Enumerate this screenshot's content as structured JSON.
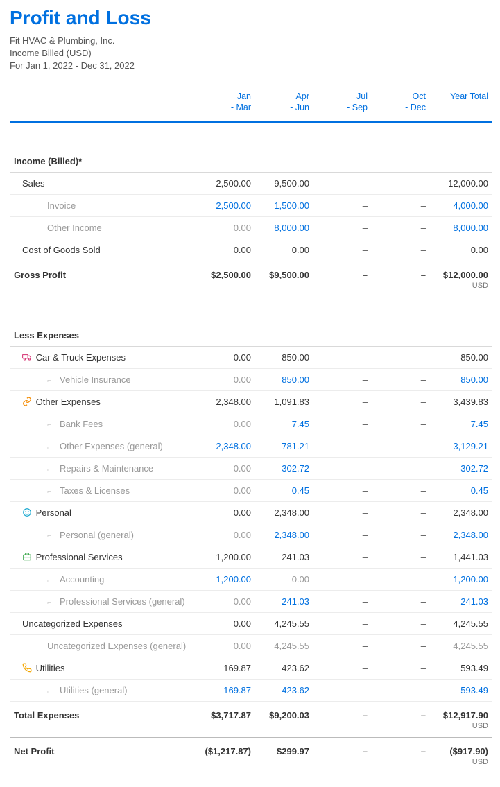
{
  "colors": {
    "brand": "#0070e0",
    "text": "#333333",
    "muted": "#999999",
    "border_light": "#ececec",
    "border_med": "#d9d9d9",
    "border_dark": "#bbbbbb",
    "header_rule": "#0070e0",
    "icon_car": "#d9447f",
    "icon_other": "#f58b00",
    "icon_personal": "#1aa8d0",
    "icon_prof": "#3ca84c",
    "icon_util": "#f5a700"
  },
  "title": "Profit and Loss",
  "subtitle": {
    "company": "Fit HVAC & Plumbing, Inc.",
    "basis": "Income Billed (USD)",
    "period": "For Jan 1, 2022 - Dec 31, 2022"
  },
  "columns": [
    {
      "l1": "",
      "l2": ""
    },
    {
      "l1": "Jan",
      "l2": "- Mar"
    },
    {
      "l1": "Apr",
      "l2": "- Jun"
    },
    {
      "l1": "Jul",
      "l2": "- Sep"
    },
    {
      "l1": "Oct",
      "l2": "- Dec"
    },
    {
      "l1": "Year Total",
      "l2": ""
    }
  ],
  "income": {
    "header": "Income (Billed)*",
    "rows": [
      {
        "type": "cat",
        "label": "Sales",
        "v": [
          "2,500.00",
          "9,500.00",
          "–",
          "–",
          "12,000.00"
        ]
      },
      {
        "type": "sub",
        "label": "Invoice",
        "v": [
          "2,500.00",
          "1,500.00",
          "–",
          "–",
          "4,000.00"
        ],
        "link": true
      },
      {
        "type": "sub",
        "label": "Other Income",
        "v": [
          "0.00",
          "8,000.00",
          "–",
          "–",
          "8,000.00"
        ],
        "link": true,
        "mute0": true
      },
      {
        "type": "cat",
        "label": "Cost of Goods Sold",
        "v": [
          "0.00",
          "0.00",
          "–",
          "–",
          "0.00"
        ]
      }
    ],
    "total": {
      "label": "Gross Profit",
      "v": [
        "$2,500.00",
        "$9,500.00",
        "–",
        "–",
        "$12,000.00"
      ],
      "curr": "USD"
    }
  },
  "expenses": {
    "header": "Less Expenses",
    "rows": [
      {
        "type": "cat",
        "icon": "car",
        "label": "Car & Truck Expenses",
        "v": [
          "0.00",
          "850.00",
          "–",
          "–",
          "850.00"
        ]
      },
      {
        "type": "sub",
        "tree": true,
        "label": "Vehicle Insurance",
        "v": [
          "0.00",
          "850.00",
          "–",
          "–",
          "850.00"
        ],
        "link": true,
        "mute0": true
      },
      {
        "type": "cat",
        "icon": "other",
        "label": "Other Expenses",
        "v": [
          "2,348.00",
          "1,091.83",
          "–",
          "–",
          "3,439.83"
        ]
      },
      {
        "type": "sub",
        "tree": true,
        "label": "Bank Fees",
        "v": [
          "0.00",
          "7.45",
          "–",
          "–",
          "7.45"
        ],
        "link": true,
        "mute0": true
      },
      {
        "type": "sub",
        "tree": true,
        "label": "Other Expenses (general)",
        "v": [
          "2,348.00",
          "781.21",
          "–",
          "–",
          "3,129.21"
        ],
        "link": true
      },
      {
        "type": "sub",
        "tree": true,
        "label": "Repairs & Maintenance",
        "v": [
          "0.00",
          "302.72",
          "–",
          "–",
          "302.72"
        ],
        "link": true,
        "mute0": true
      },
      {
        "type": "sub",
        "tree": true,
        "label": "Taxes & Licenses",
        "v": [
          "0.00",
          "0.45",
          "–",
          "–",
          "0.45"
        ],
        "link": true,
        "mute0": true
      },
      {
        "type": "cat",
        "icon": "personal",
        "label": "Personal",
        "v": [
          "0.00",
          "2,348.00",
          "–",
          "–",
          "2,348.00"
        ]
      },
      {
        "type": "sub",
        "tree": true,
        "label": "Personal (general)",
        "v": [
          "0.00",
          "2,348.00",
          "–",
          "–",
          "2,348.00"
        ],
        "link": true,
        "mute0": true
      },
      {
        "type": "cat",
        "icon": "prof",
        "label": "Professional Services",
        "v": [
          "1,200.00",
          "241.03",
          "–",
          "–",
          "1,441.03"
        ]
      },
      {
        "type": "sub",
        "tree": true,
        "label": "Accounting",
        "v": [
          "1,200.00",
          "0.00",
          "–",
          "–",
          "1,200.00"
        ],
        "link": true,
        "linkcols": [
          0,
          4
        ],
        "mute1": true
      },
      {
        "type": "sub",
        "tree": true,
        "label": "Professional Services (general)",
        "v": [
          "0.00",
          "241.03",
          "–",
          "–",
          "241.03"
        ],
        "link": true,
        "mute0": true
      },
      {
        "type": "cat",
        "label": "Uncategorized Expenses",
        "v": [
          "0.00",
          "4,245.55",
          "–",
          "–",
          "4,245.55"
        ]
      },
      {
        "type": "sub",
        "label": "Uncategorized Expenses (general)",
        "v": [
          "0.00",
          "4,245.55",
          "–",
          "–",
          "4,245.55"
        ],
        "mutedall": true
      },
      {
        "type": "cat",
        "icon": "util",
        "label": "Utilities",
        "v": [
          "169.87",
          "423.62",
          "–",
          "–",
          "593.49"
        ]
      },
      {
        "type": "sub",
        "tree": true,
        "label": "Utilities (general)",
        "v": [
          "169.87",
          "423.62",
          "–",
          "–",
          "593.49"
        ],
        "link": true
      }
    ],
    "total": {
      "label": "Total Expenses",
      "v": [
        "$3,717.87",
        "$9,200.03",
        "–",
        "–",
        "$12,917.90"
      ],
      "curr": "USD"
    }
  },
  "net": {
    "label": "Net Profit",
    "v": [
      "($1,217.87)",
      "$299.97",
      "–",
      "–",
      "($917.90)"
    ],
    "curr": "USD"
  }
}
